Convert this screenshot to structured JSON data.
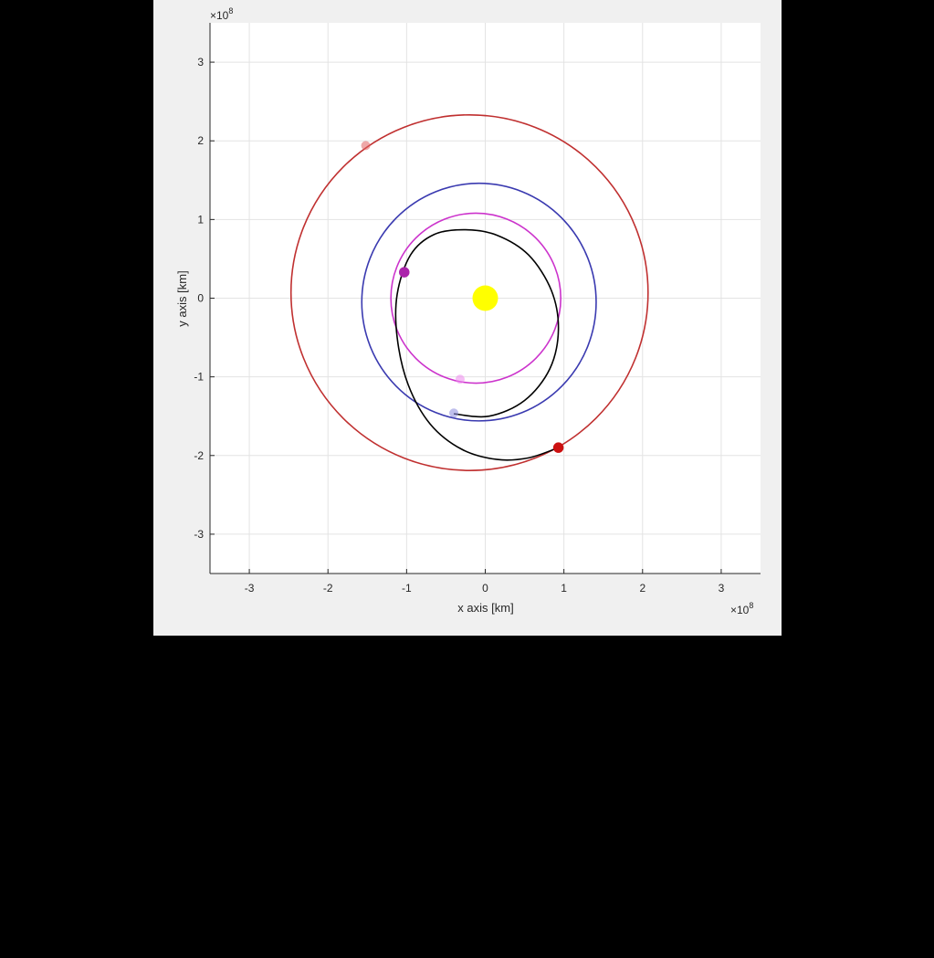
{
  "chart_data": {
    "type": "scatter",
    "title": "",
    "xlabel": "x axis [km]",
    "ylabel": "y axis [km]",
    "xlim": [
      -3.5,
      3.5
    ],
    "ylim": [
      -3.5,
      3.5
    ],
    "axis_multiplier": {
      "base": "×10",
      "exponent": "8"
    },
    "xticks": [
      -3,
      -2,
      -1,
      0,
      1,
      2,
      3
    ],
    "yticks": [
      -3,
      -2,
      -1,
      0,
      1,
      2,
      3
    ],
    "xtick_labels": [
      "-3",
      "-2",
      "-1",
      "0",
      "1",
      "2",
      "3"
    ],
    "ytick_labels": [
      "-3",
      "-2",
      "-1",
      "0",
      "1",
      "2",
      "3"
    ],
    "grid": true,
    "legend": "none",
    "sun": {
      "x": 0,
      "y": 0,
      "color": "#ffff00"
    },
    "orbits": [
      {
        "color": "#c03030",
        "center": [
          -0.2,
          0.07
        ],
        "rx": 2.27,
        "ry": 2.26
      },
      {
        "color": "#3a3ab0",
        "center": [
          -0.08,
          -0.05
        ],
        "rx": 1.49,
        "ry": 1.51
      },
      {
        "color": "#cc33cc",
        "center": [
          -0.12,
          0.0
        ],
        "rx": 1.08,
        "ry": 1.08
      }
    ],
    "transfer_arc": {
      "color": "#000000",
      "points": [
        [
          0.93,
          -1.9
        ],
        [
          0.55,
          -2.03
        ],
        [
          0.15,
          -2.05
        ],
        [
          -0.3,
          -1.92
        ],
        [
          -0.7,
          -1.6
        ],
        [
          -0.98,
          -1.1
        ],
        [
          -1.12,
          -0.5
        ],
        [
          -1.12,
          0.05
        ],
        [
          -0.95,
          0.55
        ],
        [
          -0.65,
          0.81
        ],
        [
          -0.25,
          0.87
        ],
        [
          0.15,
          0.8
        ],
        [
          0.55,
          0.55
        ],
        [
          0.84,
          0.1
        ],
        [
          0.93,
          -0.4
        ],
        [
          0.82,
          -0.9
        ],
        [
          0.5,
          -1.3
        ],
        [
          0.05,
          -1.5
        ],
        [
          -0.4,
          -1.47
        ]
      ]
    },
    "points": [
      {
        "x": 0.93,
        "y": -1.9,
        "color": "#cc1111",
        "faded": false
      },
      {
        "x": -1.52,
        "y": 1.94,
        "color": "#e06060",
        "faded": true
      },
      {
        "x": -1.03,
        "y": 0.33,
        "color": "#aa22aa",
        "faded": false
      },
      {
        "x": -0.32,
        "y": -1.03,
        "color": "#ee88ee",
        "faded": true
      },
      {
        "x": -0.4,
        "y": -1.46,
        "color": "#8888dd",
        "faded": true
      }
    ]
  }
}
